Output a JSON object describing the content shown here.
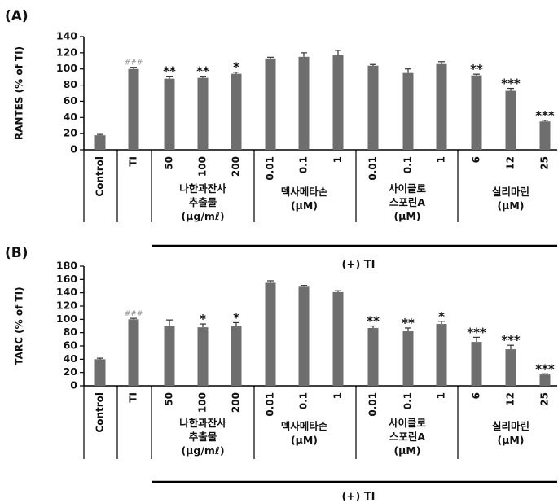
{
  "colors": {
    "bar": "#6e6e6e",
    "axis": "#000000",
    "hash_annotation": "#8a8a8a"
  },
  "chart_data": [
    {
      "type": "bar",
      "panel_label": "(A)",
      "ylabel": "RANTES (% of TI)",
      "ylim": [
        0,
        140
      ],
      "yticks": [
        0,
        20,
        40,
        60,
        80,
        100,
        120,
        140
      ],
      "grid": false,
      "categories": [
        "Control",
        "TI",
        "50",
        "100",
        "200",
        "0.01",
        "0.1",
        "1",
        "0.01",
        "0.1",
        "1",
        "6",
        "12",
        "25"
      ],
      "values": [
        18,
        100,
        88,
        89,
        94,
        113,
        115,
        117,
        104,
        95,
        106,
        92,
        73,
        35
      ],
      "errors": [
        1,
        2,
        3,
        2,
        2,
        1.5,
        5,
        6,
        1.5,
        5,
        3,
        1.5,
        3,
        1.5
      ],
      "annotations": [
        "",
        "###",
        "**",
        "**",
        "*",
        "",
        "",
        "",
        "",
        "",
        "",
        "**",
        "***",
        "***"
      ],
      "groups": [
        {
          "label_lines": [
            "나한과잔사",
            "추출물",
            "(μg/mℓ)"
          ],
          "start": 2,
          "end": 4
        },
        {
          "label_lines": [
            "덱사메타손",
            "(μM)"
          ],
          "start": 5,
          "end": 7
        },
        {
          "label_lines": [
            "사이클로",
            "스포린A",
            "(μM)"
          ],
          "start": 8,
          "end": 10
        },
        {
          "label_lines": [
            "실리마린",
            "(μM)"
          ],
          "start": 11,
          "end": 13
        }
      ],
      "treatment_label": "(+) TI"
    },
    {
      "type": "bar",
      "panel_label": "(B)",
      "ylabel": "TARC (% of TI)",
      "ylim": [
        0,
        180
      ],
      "yticks": [
        0,
        20,
        40,
        60,
        80,
        100,
        120,
        140,
        160,
        180
      ],
      "grid": false,
      "categories": [
        "Control",
        "TI",
        "50",
        "100",
        "200",
        "0.01",
        "0.1",
        "1",
        "0.01",
        "0.1",
        "1",
        "6",
        "12",
        "25"
      ],
      "values": [
        40,
        100,
        90,
        88,
        90,
        155,
        149,
        141,
        87,
        82,
        93,
        66,
        55,
        17
      ],
      "errors": [
        1.5,
        1.5,
        9,
        5,
        5,
        3,
        2,
        2,
        3,
        5,
        4,
        7,
        6,
        1
      ],
      "annotations": [
        "",
        "###",
        "",
        "*",
        "*",
        "",
        "",
        "",
        "**",
        "**",
        "*",
        "***",
        "***",
        "***"
      ],
      "groups": [
        {
          "label_lines": [
            "나한과잔사",
            "추출물",
            "(μg/mℓ)"
          ],
          "start": 2,
          "end": 4
        },
        {
          "label_lines": [
            "덱사메타손",
            "(μM)"
          ],
          "start": 5,
          "end": 7
        },
        {
          "label_lines": [
            "사이클로",
            "스포린A",
            "(μM)"
          ],
          "start": 8,
          "end": 10
        },
        {
          "label_lines": [
            "실리마린",
            "(μM)"
          ],
          "start": 11,
          "end": 13
        }
      ],
      "treatment_label": "(+) TI"
    }
  ]
}
